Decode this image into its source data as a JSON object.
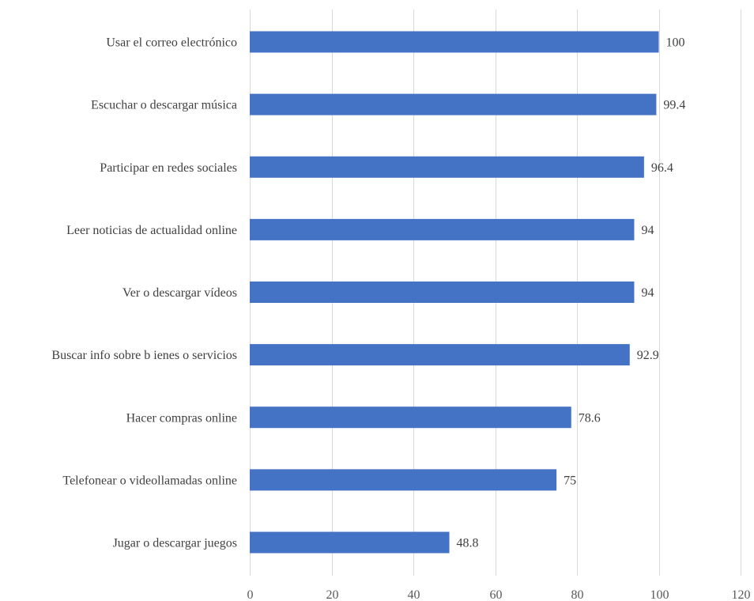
{
  "chart_data": {
    "type": "bar",
    "orientation": "horizontal",
    "title": "",
    "xlabel": "",
    "ylabel": "",
    "categories": [
      "Usar el correo electrónico",
      "Escuchar o descargar música",
      "Participar en redes sociales",
      "Leer noticias de actualidad online",
      "Ver o descargar vídeos",
      "Buscar info sobre b ienes o servicios",
      "Hacer compras online",
      "Telefonear o videollamadas online",
      "Jugar o descargar juegos"
    ],
    "values": [
      100,
      99.4,
      96.4,
      94,
      94,
      92.9,
      78.6,
      75,
      48.8
    ],
    "value_labels": [
      "100",
      "99.4",
      "96.4",
      "94",
      "94",
      "92.9",
      "78.6",
      "75",
      "48.8"
    ],
    "xlim": [
      0,
      120
    ],
    "x_ticks": [
      0,
      20,
      40,
      60,
      80,
      100,
      120
    ],
    "grid": true,
    "legend": "none",
    "bar_color": "#4472c4"
  }
}
